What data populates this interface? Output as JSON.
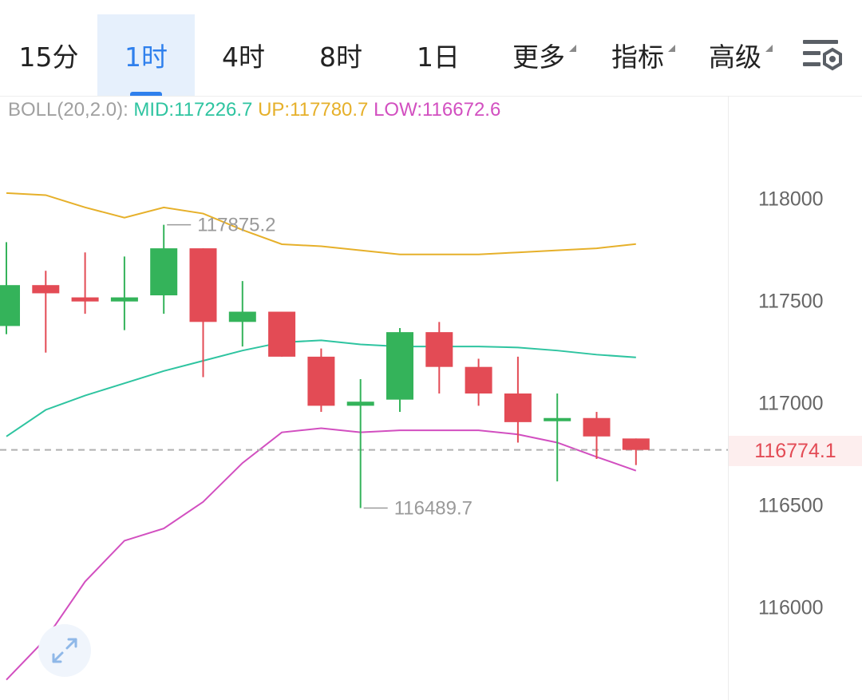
{
  "tabs": [
    {
      "label": "15分",
      "active": false,
      "dropdown": false
    },
    {
      "label": "1时",
      "active": true,
      "dropdown": false
    },
    {
      "label": "4时",
      "active": false,
      "dropdown": false
    },
    {
      "label": "8时",
      "active": false,
      "dropdown": false
    },
    {
      "label": "1日",
      "active": false,
      "dropdown": false
    },
    {
      "label": "更多",
      "active": false,
      "dropdown": true
    },
    {
      "label": "指标",
      "active": false,
      "dropdown": true
    },
    {
      "label": "高级",
      "active": false,
      "dropdown": true
    }
  ],
  "settings_icon": "chart-settings-icon",
  "indicator": {
    "name": "BOLL(20,2.0):",
    "mid_text": "MID:117226.7",
    "up_text": "UP:117780.7",
    "low_text": "LOW:116672.6"
  },
  "price_axis": {
    "ticks": [
      "118000",
      "117500",
      "117000",
      "116500",
      "116000"
    ],
    "current_price": "116774.1"
  },
  "annotations": {
    "high": "117875.2",
    "low": "116489.7"
  },
  "colors": {
    "up_candle": "#34b35a",
    "down_candle": "#e34b55",
    "boll_up": "#e6b02a",
    "boll_mid": "#2ec4a0",
    "boll_low": "#d24fc0",
    "active_tab": "#2f80ed"
  },
  "expand_icon": "expand-arrows-icon",
  "chart_data": {
    "type": "candlestick",
    "interval": "1时",
    "candles": [
      {
        "open": 117380,
        "close": 117580,
        "high": 117790,
        "low": 117340
      },
      {
        "open": 117580,
        "close": 117540,
        "high": 117650,
        "low": 117250
      },
      {
        "open": 117520,
        "close": 117500,
        "high": 117740,
        "low": 117440
      },
      {
        "open": 117500,
        "close": 117520,
        "high": 117720,
        "low": 117360
      },
      {
        "open": 117530,
        "close": 117760,
        "high": 117875.2,
        "low": 117440
      },
      {
        "open": 117760,
        "close": 117400,
        "high": 117760,
        "low": 117130
      },
      {
        "open": 117400,
        "close": 117450,
        "high": 117600,
        "low": 117280
      },
      {
        "open": 117450,
        "close": 117230,
        "high": 117450,
        "low": 117230
      },
      {
        "open": 117230,
        "close": 116990,
        "high": 117270,
        "low": 116960
      },
      {
        "open": 116990,
        "close": 117010,
        "high": 117120,
        "low": 116489.7
      },
      {
        "open": 117020,
        "close": 117350,
        "high": 117370,
        "low": 116960
      },
      {
        "open": 117350,
        "close": 117180,
        "high": 117400,
        "low": 117050
      },
      {
        "open": 117180,
        "close": 117050,
        "high": 117220,
        "low": 116990
      },
      {
        "open": 117050,
        "close": 116910,
        "high": 117230,
        "low": 116810
      },
      {
        "open": 116920,
        "close": 116930,
        "high": 117050,
        "low": 116620
      },
      {
        "open": 116930,
        "close": 116840,
        "high": 116960,
        "low": 116730
      },
      {
        "open": 116830,
        "close": 116774.1,
        "high": 116830,
        "low": 116700
      }
    ],
    "boll_upper": [
      118030,
      118020,
      117960,
      117910,
      117960,
      117930,
      117850,
      117780,
      117770,
      117750,
      117730,
      117730,
      117730,
      117740,
      117750,
      117760,
      117780.7
    ],
    "boll_mid": [
      116840,
      116970,
      117040,
      117100,
      117160,
      117210,
      117260,
      117300,
      117310,
      117290,
      117280,
      117280,
      117280,
      117275,
      117260,
      117240,
      117226.7
    ],
    "boll_lower": [
      115650,
      115850,
      116130,
      116330,
      116390,
      116520,
      116710,
      116860,
      116880,
      116860,
      116870,
      116870,
      116870,
      116850,
      116810,
      116740,
      116672.6
    ],
    "ylim": [
      115680,
      118640
    ],
    "yticks": [
      116000,
      116500,
      117000,
      117500,
      118000
    ],
    "last_price": 116774.1
  }
}
